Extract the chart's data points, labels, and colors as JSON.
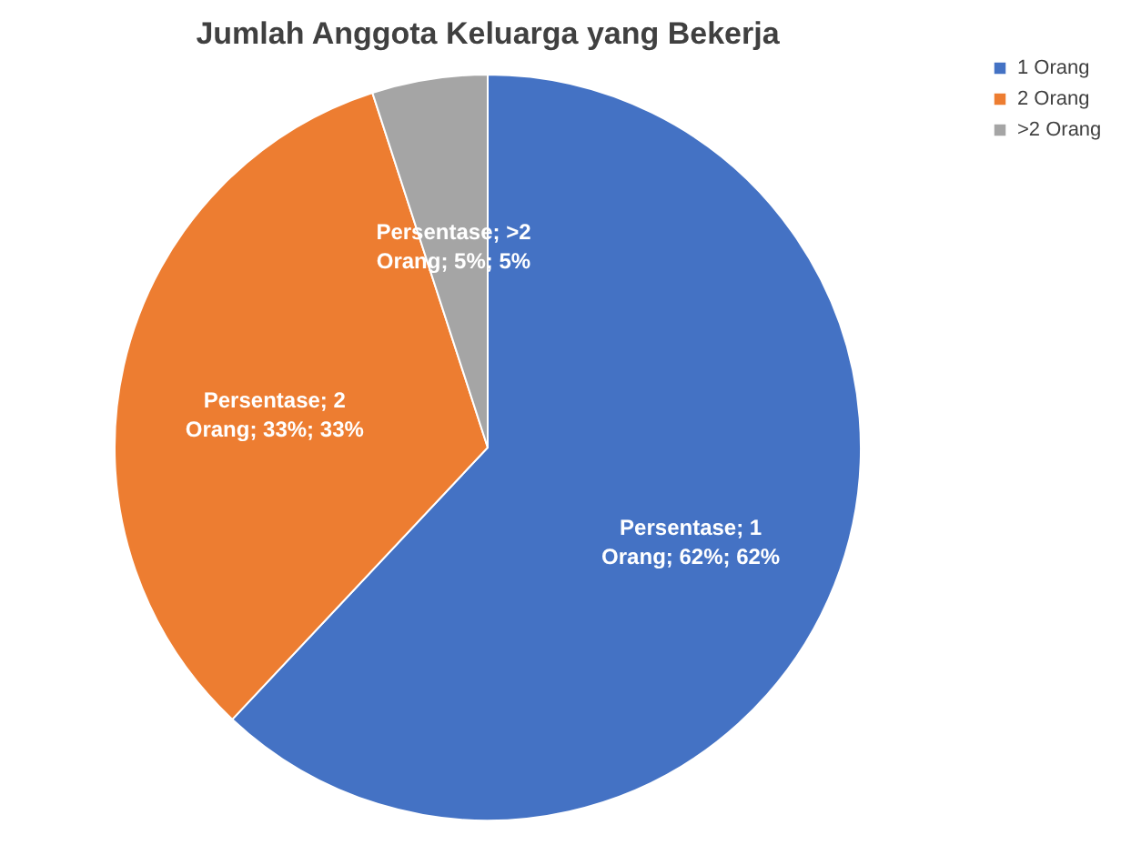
{
  "chart_data": {
    "type": "pie",
    "title": "Jumlah Anggota Keluarga yang Bekerja",
    "categories": [
      "1 Orang",
      "2 Orang",
      ">2 Orang"
    ],
    "values": [
      62,
      33,
      5
    ],
    "colors": [
      "#4472c4",
      "#ed7d31",
      "#a5a5a5"
    ],
    "value_labels": [
      "Persentase; 1 Orang; 62%; 62%",
      "Persentase; 2 Orang; 33%; 33%",
      "Persentase; >2 Orang; 5%; 5%"
    ],
    "legend": "right"
  }
}
